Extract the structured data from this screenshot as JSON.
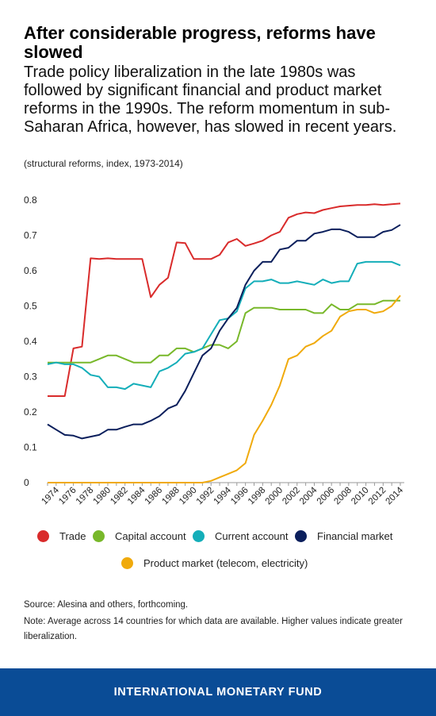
{
  "title": "After considerable progress, reforms have slowed",
  "subtitle": "Trade policy liberalization in the late 1980s was followed by significant financial and product market reforms in the 1990s. The reform momentum in sub-Saharan Africa, however, has slowed in recent years.",
  "unit_note": "(structural reforms, index, 1973-2014)",
  "source": "Source: Alesina and others, forthcoming.",
  "note": "Note: Average across 14 countries for which data are available. Higher values indicate greater liberalization.",
  "footer": "INTERNATIONAL MONETARY FUND",
  "chart_data": {
    "type": "line",
    "x": [
      1973,
      1974,
      1975,
      1976,
      1977,
      1978,
      1979,
      1980,
      1981,
      1982,
      1983,
      1984,
      1985,
      1986,
      1987,
      1988,
      1989,
      1990,
      1991,
      1992,
      1993,
      1994,
      1995,
      1996,
      1997,
      1998,
      1999,
      2000,
      2001,
      2002,
      2003,
      2004,
      2005,
      2006,
      2007,
      2008,
      2009,
      2010,
      2011,
      2012,
      2013,
      2014
    ],
    "xticks": [
      "1974",
      "1976",
      "1978",
      "1980",
      "1982",
      "1984",
      "1986",
      "1988",
      "1990",
      "1992",
      "1994",
      "1996",
      "1998",
      "2000",
      "2002",
      "2004",
      "2006",
      "2008",
      "2010",
      "2012",
      "2014"
    ],
    "yticks": [
      "0",
      "0.1",
      "0.2",
      "0.3",
      "0.4",
      "0.5",
      "0.6",
      "0.7",
      "0.8"
    ],
    "ylim": [
      0,
      0.8
    ],
    "grid": false,
    "legend_position": "bottom",
    "series": [
      {
        "name": "Trade",
        "color": "#d92b2b",
        "values": [
          0.245,
          0.245,
          0.245,
          0.38,
          0.385,
          0.635,
          0.633,
          0.635,
          0.633,
          0.633,
          0.633,
          0.633,
          0.525,
          0.56,
          0.58,
          0.68,
          0.678,
          0.633,
          0.633,
          0.633,
          0.645,
          0.68,
          0.69,
          0.67,
          0.677,
          0.685,
          0.7,
          0.71,
          0.75,
          0.76,
          0.765,
          0.763,
          0.772,
          0.777,
          0.782,
          0.784,
          0.786,
          0.786,
          0.788,
          0.786,
          0.788,
          0.79
        ]
      },
      {
        "name": "Capital account",
        "color": "#78b82a",
        "values": [
          0.34,
          0.34,
          0.34,
          0.34,
          0.34,
          0.34,
          0.35,
          0.36,
          0.36,
          0.35,
          0.34,
          0.34,
          0.34,
          0.36,
          0.36,
          0.38,
          0.38,
          0.37,
          0.38,
          0.39,
          0.39,
          0.38,
          0.4,
          0.48,
          0.495,
          0.495,
          0.495,
          0.49,
          0.49,
          0.49,
          0.49,
          0.48,
          0.48,
          0.505,
          0.49,
          0.49,
          0.505,
          0.505,
          0.505,
          0.515,
          0.515,
          0.515
        ]
      },
      {
        "name": "Current account",
        "color": "#14aeb9",
        "values": [
          0.335,
          0.34,
          0.335,
          0.335,
          0.325,
          0.305,
          0.3,
          0.27,
          0.27,
          0.265,
          0.28,
          0.275,
          0.27,
          0.315,
          0.325,
          0.34,
          0.365,
          0.37,
          0.38,
          0.42,
          0.46,
          0.465,
          0.485,
          0.55,
          0.57,
          0.57,
          0.575,
          0.565,
          0.565,
          0.57,
          0.565,
          0.56,
          0.575,
          0.565,
          0.57,
          0.57,
          0.62,
          0.625,
          0.625,
          0.625,
          0.625,
          0.615
        ]
      },
      {
        "name": "Financial market",
        "color": "#0b1f5c",
        "values": [
          0.165,
          0.15,
          0.135,
          0.133,
          0.125,
          0.13,
          0.135,
          0.15,
          0.15,
          0.158,
          0.165,
          0.165,
          0.175,
          0.188,
          0.21,
          0.22,
          0.26,
          0.31,
          0.36,
          0.38,
          0.43,
          0.465,
          0.495,
          0.56,
          0.6,
          0.625,
          0.625,
          0.66,
          0.665,
          0.685,
          0.685,
          0.705,
          0.71,
          0.717,
          0.717,
          0.71,
          0.695,
          0.695,
          0.695,
          0.71,
          0.715,
          0.73
        ]
      },
      {
        "name": "Product market (telecom, electricity)",
        "color": "#f0aa0c",
        "values": [
          0,
          0,
          0,
          0,
          0,
          0,
          0,
          0,
          0,
          0,
          0,
          0,
          0,
          0,
          0,
          0,
          0,
          0,
          0,
          0.005,
          0.015,
          0.025,
          0.035,
          0.055,
          0.135,
          0.175,
          0.22,
          0.275,
          0.35,
          0.36,
          0.385,
          0.395,
          0.415,
          0.43,
          0.47,
          0.485,
          0.49,
          0.49,
          0.48,
          0.485,
          0.5,
          0.53
        ]
      }
    ]
  }
}
